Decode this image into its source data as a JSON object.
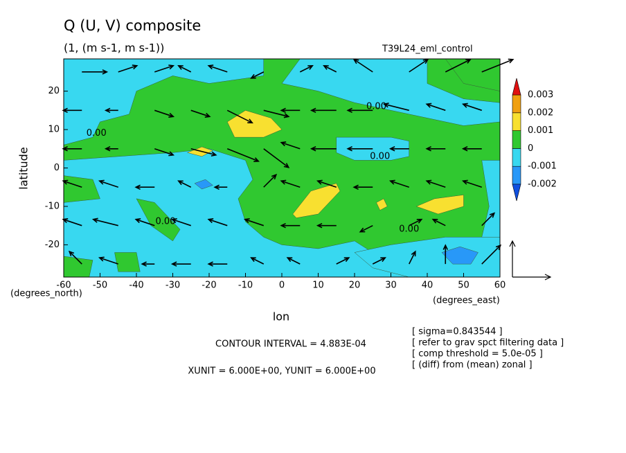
{
  "chart_data": {
    "type": "contour-vector",
    "title": "Q (U, V) composite",
    "subtitle": "(1, (m s-1, m s-1))",
    "run_label": "T39L24_eml_control",
    "x_label": "lon",
    "y_label": "latitude",
    "y_unit_label": "(degrees_north)",
    "x_unit_label": "(degrees_east)",
    "contour_interval_text": "CONTOUR INTERVAL = 4.883E-04",
    "unit_text": "XUNIT = 6.000E+00, YUNIT = 6.000E+00",
    "notes": [
      "[ sigma=0.843544 ]",
      "[ refer to grav spct filtering data ]",
      "[ comp threshold = 5.0e-05 ]",
      "[ (diff) from (mean) zonal ]"
    ],
    "xlim": [
      -60,
      60
    ],
    "ylim": [
      -28.4,
      28.4
    ],
    "xticks": [
      -60,
      -50,
      -40,
      -30,
      -20,
      -10,
      0,
      10,
      20,
      30,
      40,
      50,
      60
    ],
    "yticks": [
      -20,
      -10,
      0,
      10,
      20
    ],
    "colorbar": {
      "levels": [
        -0.002,
        -0.001,
        0,
        0.001,
        0.002,
        0.003
      ],
      "colors": [
        "#1050e0",
        "#2898f8",
        "#38d8f0",
        "#30c830",
        "#f8e030",
        "#f0a010",
        "#e01010"
      ]
    },
    "regions": [
      {
        "level": 0,
        "lon": [
          -60,
          60,
          60,
          -60
        ],
        "lat": [
          28.4,
          28.4,
          -28.4,
          -28.4
        ]
      },
      {
        "level": -0.001,
        "lon": [
          -60,
          -5,
          -5,
          -20,
          -30,
          -40,
          -42,
          -50,
          -52,
          -60
        ],
        "lat": [
          28.4,
          28.4,
          24,
          22,
          24,
          20,
          14,
          12,
          8,
          6
        ]
      },
      {
        "level": -0.001,
        "lon": [
          -60,
          -45,
          -30,
          -20,
          -10,
          -8,
          -12,
          -10,
          -5,
          0,
          10,
          20,
          25,
          35,
          40,
          45,
          -60
        ],
        "lat": [
          2,
          3,
          4,
          5,
          2,
          -3,
          -8,
          -14,
          -18,
          -20,
          -21,
          -19,
          -22,
          -24,
          -26,
          -28.4,
          -28.4
        ]
      },
      {
        "level": 0,
        "lon": [
          -60,
          -52,
          -50,
          -60
        ],
        "lat": [
          -2,
          -3,
          -8,
          -9
        ]
      },
      {
        "level": 0,
        "lon": [
          -40,
          -35,
          -28,
          -30,
          -36
        ],
        "lat": [
          -8,
          -9,
          -16,
          -19,
          -15
        ]
      },
      {
        "level": 0,
        "lon": [
          -46,
          -40,
          -39,
          -45
        ],
        "lat": [
          -22,
          -22,
          -27,
          -27
        ]
      },
      {
        "level": 0,
        "lon": [
          -60,
          -52,
          -53,
          -60
        ],
        "lat": [
          -23,
          -24,
          -28.4,
          -28.4
        ]
      },
      {
        "level": -0.001,
        "lon": [
          15,
          30,
          35,
          35,
          30,
          20,
          15
        ],
        "lat": [
          8,
          8,
          7,
          3,
          2,
          2,
          4
        ]
      },
      {
        "level": -0.001,
        "lon": [
          5,
          40,
          40,
          45,
          50,
          60,
          60,
          50,
          35,
          20,
          10,
          0
        ],
        "lat": [
          28.4,
          28.4,
          22,
          20,
          18,
          17,
          12,
          11,
          14,
          17,
          20,
          22
        ]
      },
      {
        "level": 0,
        "lon": [
          45,
          60,
          60,
          50
        ],
        "lat": [
          28.4,
          28.4,
          20,
          22
        ]
      },
      {
        "level": -0.001,
        "lon": [
          55,
          60,
          60,
          55,
          57
        ],
        "lat": [
          2,
          2,
          -20,
          -18,
          -10
        ]
      },
      {
        "level": -0.001,
        "lon": [
          20,
          30,
          45,
          60,
          60,
          35,
          25
        ],
        "lat": [
          -22,
          -20,
          -18,
          -18,
          -28.4,
          -28.4,
          -26
        ]
      },
      {
        "level": 0.001,
        "lon": [
          -15,
          -10,
          -3,
          0,
          -5,
          -13
        ],
        "lat": [
          12,
          15,
          13,
          10,
          8,
          8
        ]
      },
      {
        "level": 0.001,
        "lon": [
          -26,
          -22,
          -19,
          -22
        ],
        "lat": [
          4,
          5.5,
          4.5,
          3
        ]
      },
      {
        "level": 0.001,
        "lon": [
          3,
          8,
          15,
          16,
          10,
          4
        ],
        "lat": [
          -12,
          -6,
          -4,
          -6,
          -12,
          -13
        ]
      },
      {
        "level": 0.001,
        "lon": [
          37,
          42,
          50,
          50,
          43
        ],
        "lat": [
          -10,
          -8,
          -7,
          -10,
          -12
        ]
      },
      {
        "level": 0.001,
        "lon": [
          26,
          28,
          29,
          27
        ],
        "lat": [
          -9,
          -8,
          -10,
          -11
        ]
      },
      {
        "level": -0.002,
        "lon": [
          -24,
          -21,
          -19,
          -22
        ],
        "lat": [
          -4,
          -3,
          -4.5,
          -5.5
        ]
      },
      {
        "level": -0.002,
        "lon": [
          44,
          49,
          54,
          52,
          47
        ],
        "lat": [
          -22,
          -20.5,
          -22,
          -25,
          -25
        ]
      }
    ],
    "contour_labels": [
      {
        "text": "0.00",
        "lon": 26,
        "lat": 16
      },
      {
        "text": "0.00",
        "lon": -51,
        "lat": 9
      },
      {
        "text": "0.00",
        "lon": 27,
        "lat": 3
      },
      {
        "text": "0.00",
        "lon": -32,
        "lat": -14
      },
      {
        "text": "0.00",
        "lon": 35,
        "lat": -16
      }
    ],
    "vectors": {
      "lon": [
        -55,
        -45,
        -35,
        -25,
        -15,
        -5,
        5,
        15,
        25,
        35,
        45,
        55
      ],
      "lat": [
        25,
        15,
        5,
        -5,
        -15,
        -25
      ],
      "u": [
        [
          4,
          3,
          3,
          -2,
          -3,
          -2,
          2,
          -2,
          -3,
          3,
          4,
          5
        ],
        [
          -3,
          -2,
          3,
          3,
          4,
          4,
          -3,
          -4,
          -4,
          -4,
          -3,
          -3
        ],
        [
          -3,
          -2,
          3,
          4,
          5,
          4,
          -3,
          -4,
          -4,
          -3,
          -3,
          -3
        ],
        [
          -3,
          -3,
          -3,
          -2,
          -2,
          2,
          -3,
          -3,
          -3,
          -3,
          -3,
          -3
        ],
        [
          -3,
          -4,
          -3,
          -3,
          -3,
          -3,
          -3,
          -3,
          -2,
          2,
          -2,
          2
        ],
        [
          -2,
          -3,
          -2,
          -3,
          -3,
          -2,
          -2,
          2,
          2,
          1,
          0,
          3
        ]
      ],
      "v": [
        [
          0,
          1,
          1,
          1,
          1,
          -1,
          1,
          1,
          2,
          2,
          2,
          2
        ],
        [
          0,
          0,
          -1,
          -1,
          -2,
          -1,
          0,
          0,
          0,
          1,
          1,
          1
        ],
        [
          0,
          0,
          -1,
          -1,
          -2,
          -3,
          1,
          0,
          0,
          0,
          0,
          0
        ],
        [
          1,
          1,
          0,
          1,
          0,
          2,
          1,
          1,
          0,
          1,
          1,
          1
        ],
        [
          1,
          1,
          1,
          1,
          1,
          1,
          0,
          0,
          -1,
          1,
          1,
          2
        ],
        [
          2,
          1,
          0,
          0,
          0,
          1,
          1,
          1,
          1,
          2,
          3,
          3
        ]
      ]
    }
  }
}
